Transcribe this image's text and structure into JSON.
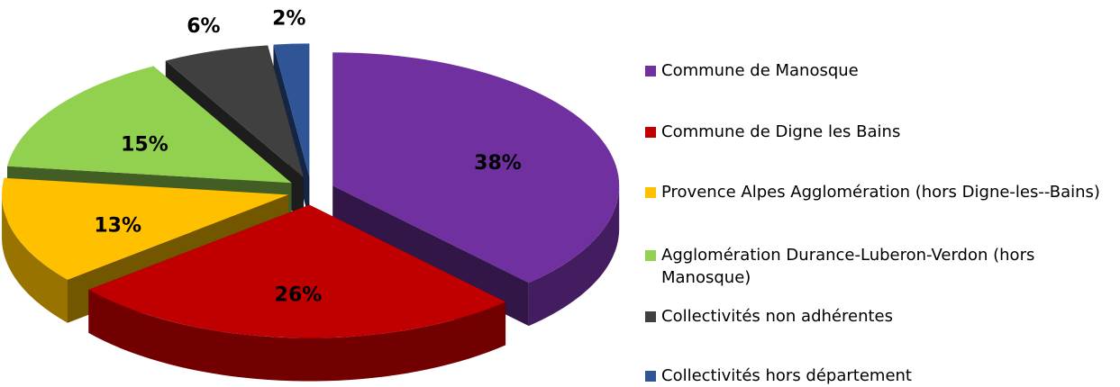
{
  "chart_data": {
    "type": "pie",
    "categories": [
      "Commune de Manosque",
      "Commune de Digne les Bains",
      "Provence Alpes Agglomération (hors Digne-les--Bains)",
      "Agglomération Durance-Luberon-Verdon (hors Manosque)",
      "Collectivités non adhérentes",
      "Collectivités hors département"
    ],
    "values": [
      38,
      26,
      13,
      15,
      6,
      2
    ],
    "value_labels": [
      "38%",
      "26%",
      "13%",
      "15%",
      "6%",
      "2%"
    ],
    "colors": [
      "#7030a0",
      "#c00000",
      "#ffc000",
      "#92d050",
      "#404040",
      "#2f5597"
    ],
    "legend": "right"
  }
}
